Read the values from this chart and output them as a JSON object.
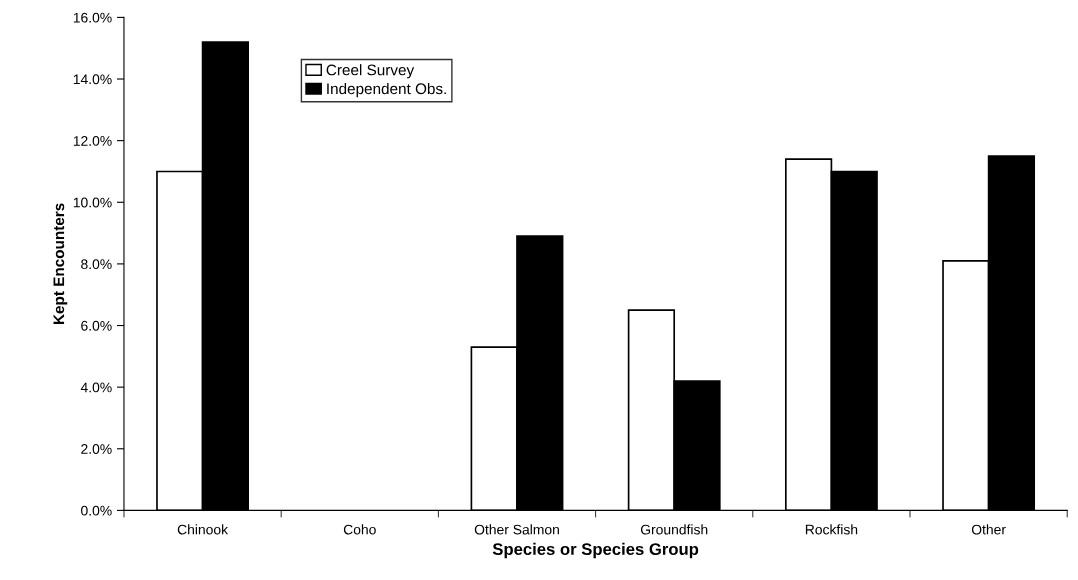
{
  "chart_data": {
    "type": "bar",
    "xlabel": "Species or Species Group",
    "ylabel": "Kept Encounters",
    "categories": [
      "Chinook",
      "Coho",
      "Other Salmon",
      "Groundfish",
      "Rockfish",
      "Other"
    ],
    "series": [
      {
        "name": "Creel Survey",
        "color": "#ffffff",
        "values": [
          11.0,
          0,
          5.3,
          6.5,
          11.4,
          8.1
        ]
      },
      {
        "name": "Independent Obs.",
        "color": "#000000",
        "values": [
          15.2,
          0,
          8.9,
          4.2,
          11.0,
          11.5
        ]
      }
    ],
    "ylim": [
      0,
      16
    ],
    "yticks": [
      {
        "value": 0,
        "label": "0.0%"
      },
      {
        "value": 2,
        "label": "2.0%"
      },
      {
        "value": 4,
        "label": "4.0%"
      },
      {
        "value": 6,
        "label": "6.0%"
      },
      {
        "value": 8,
        "label": "8.0%"
      },
      {
        "value": 10,
        "label": "10.0%"
      },
      {
        "value": 12,
        "label": "12.0%"
      },
      {
        "value": 14,
        "label": "14.0%"
      },
      {
        "value": 16,
        "label": "16.0%"
      }
    ],
    "grid": false,
    "legend": "top left"
  }
}
